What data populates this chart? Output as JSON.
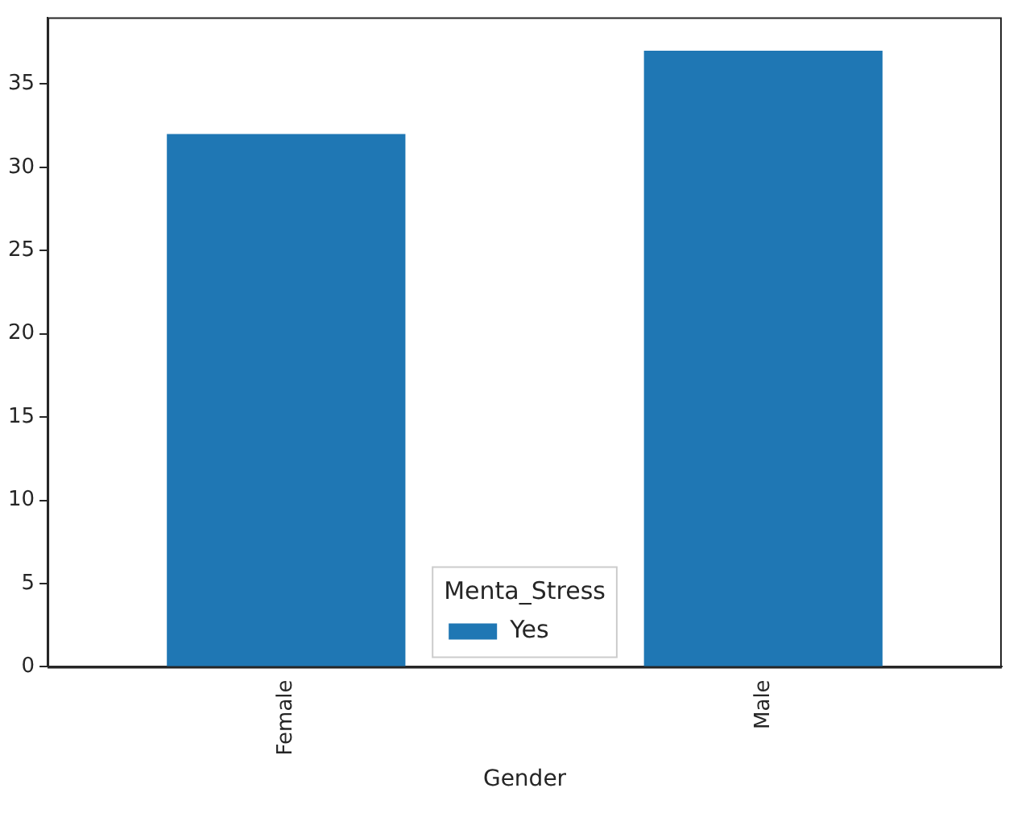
{
  "chart_data": {
    "type": "bar",
    "xlabel": "Gender",
    "legend_title": "Menta_Stress",
    "categories": [
      "Female",
      "Male"
    ],
    "series": [
      {
        "name": "Yes",
        "color": "#1f77b4",
        "values": [
          32,
          37
        ]
      }
    ],
    "ylim": [
      0,
      39
    ],
    "yticks": [
      0,
      5,
      10,
      15,
      20,
      25,
      30,
      35
    ],
    "grid": false,
    "legend": "bottom"
  }
}
